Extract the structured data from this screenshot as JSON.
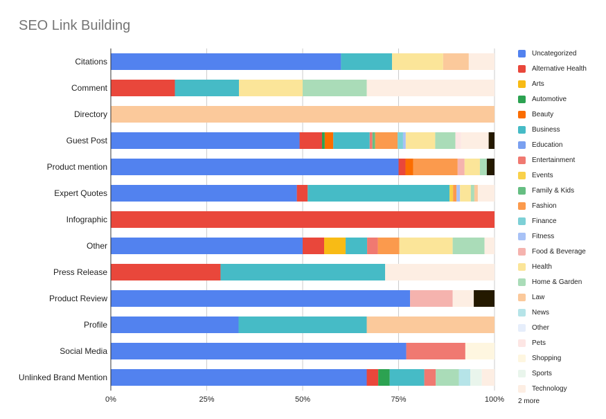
{
  "chart_data": {
    "type": "bar",
    "orientation": "horizontal",
    "stacked": "percent",
    "title": "SEO Link Building",
    "xlabel": "",
    "ylabel": "",
    "xlim": [
      0,
      100
    ],
    "x_ticks": [
      "0%",
      "25%",
      "50%",
      "75%",
      "100%"
    ],
    "grid": true,
    "legend_position": "right",
    "legend_more": "2 more",
    "categories": [
      "Citations",
      "Comment",
      "Directory",
      "Guest Post",
      "Product mention",
      "Expert Quotes",
      "Infographic",
      "Other",
      "Press Release",
      "Product Review",
      "Profile",
      "Social Media",
      "Unlinked Brand Mention"
    ],
    "series": [
      {
        "name": "Uncategorized",
        "color": "#5282ef",
        "values": [
          60,
          0,
          0,
          48.7,
          75,
          48,
          0,
          50,
          0,
          78,
          33.3,
          77,
          66.7
        ]
      },
      {
        "name": "Alternative Health",
        "color": "#e9473b",
        "values": [
          0,
          16.7,
          0,
          5.8,
          1.8,
          2.8,
          100,
          5.6,
          28.6,
          0,
          0,
          0,
          3
        ]
      },
      {
        "name": "Arts",
        "color": "#f8bb15",
        "values": [
          0,
          0,
          0,
          0,
          0,
          0,
          0,
          5.6,
          0,
          0,
          0,
          0,
          0
        ]
      },
      {
        "name": "Automotive",
        "color": "#2ca251",
        "values": [
          0,
          0,
          0,
          0.7,
          0,
          0,
          0,
          0,
          0,
          0,
          0,
          0,
          3
        ]
      },
      {
        "name": "Beauty",
        "color": "#fb6d00",
        "values": [
          0,
          0,
          0,
          2.2,
          2,
          0,
          0,
          0,
          0,
          0,
          0,
          0,
          0
        ]
      },
      {
        "name": "Business",
        "color": "#46bbc6",
        "values": [
          13.3,
          16.7,
          0,
          9.4,
          0,
          36.6,
          0,
          5.6,
          42.9,
          0,
          33.4,
          0,
          9
        ]
      },
      {
        "name": "Education",
        "color": "#7aa0f0",
        "values": [
          0,
          0,
          0,
          0,
          0,
          0,
          0,
          0,
          0,
          0,
          0,
          0,
          0
        ]
      },
      {
        "name": "Entertainment",
        "color": "#f07971",
        "values": [
          0,
          0,
          0,
          0.7,
          0,
          0,
          0,
          2.8,
          0,
          0,
          0,
          15.4,
          3
        ]
      },
      {
        "name": "Events",
        "color": "#f9d14a",
        "values": [
          0,
          0,
          0,
          0,
          0,
          0.9,
          0,
          0,
          0,
          0,
          0,
          0,
          0
        ]
      },
      {
        "name": "Family & Kids",
        "color": "#66be82",
        "values": [
          0,
          0,
          0,
          0.7,
          0,
          0,
          0,
          0,
          0,
          0,
          0,
          0,
          0
        ]
      },
      {
        "name": "Fashion",
        "color": "#fb9a4d",
        "values": [
          0,
          0,
          0,
          5.8,
          11.6,
          0.9,
          0,
          5.6,
          0,
          0,
          0,
          0,
          0
        ]
      },
      {
        "name": "Finance",
        "color": "#7dd0d6",
        "values": [
          0,
          0,
          0,
          1.4,
          0,
          0,
          0,
          0,
          0,
          0,
          0,
          0,
          0
        ]
      },
      {
        "name": "Fitness",
        "color": "#a8c2f6",
        "values": [
          0,
          0,
          0,
          0.7,
          0,
          0.9,
          0,
          0,
          0,
          0,
          0,
          0,
          0
        ]
      },
      {
        "name": "Food & Beverage",
        "color": "#f5b3ae",
        "values": [
          0,
          0,
          0,
          0,
          1.8,
          0,
          0,
          0,
          0,
          11.1,
          0,
          0,
          0
        ]
      },
      {
        "name": "Health",
        "color": "#fbe599",
        "values": [
          13.3,
          16.6,
          0,
          7.6,
          4,
          2.8,
          0,
          13.9,
          0,
          0,
          0,
          0,
          0
        ]
      },
      {
        "name": "Home & Garden",
        "color": "#aadcb8",
        "values": [
          0,
          16.7,
          0,
          5.2,
          1.8,
          0.9,
          0,
          8.3,
          0,
          0,
          0,
          0,
          6
        ]
      },
      {
        "name": "Law",
        "color": "#fbc99b",
        "values": [
          6.7,
          0,
          100,
          0,
          0,
          0.9,
          0,
          0,
          0,
          0,
          33.3,
          0,
          0
        ]
      },
      {
        "name": "News",
        "color": "#b6e4e8",
        "values": [
          0,
          0,
          0,
          0,
          0,
          0,
          0,
          0,
          0,
          0,
          0,
          0,
          3
        ]
      },
      {
        "name": "Other",
        "color": "#e6eefb",
        "values": [
          0,
          0,
          0,
          0,
          0,
          0,
          0,
          0,
          0,
          0,
          0,
          0,
          0
        ]
      },
      {
        "name": "Pets",
        "color": "#fde6e4",
        "values": [
          0,
          0,
          0,
          1.5,
          0,
          0,
          0,
          0,
          0,
          0,
          0,
          0,
          0
        ]
      },
      {
        "name": "Shopping",
        "color": "#fef6e0",
        "values": [
          0,
          0,
          0,
          0,
          0,
          0,
          0,
          0,
          0,
          0,
          0,
          7.6,
          0
        ]
      },
      {
        "name": "Sports",
        "color": "#e9f5ec",
        "values": [
          0,
          0,
          0,
          0,
          0,
          0,
          0,
          0,
          0,
          0,
          0,
          0,
          3
        ]
      },
      {
        "name": "Technology",
        "color": "#fdeee3",
        "values": [
          6.7,
          33.3,
          0,
          7.1,
          0,
          4.3,
          0,
          2.6,
          28.5,
          5.5,
          0,
          0,
          3.3
        ]
      },
      {
        "name": "",
        "color": "#241900",
        "values": [
          0,
          0,
          0,
          1.5,
          2,
          0,
          0,
          0,
          0,
          5.4,
          0,
          0,
          0
        ]
      }
    ]
  }
}
